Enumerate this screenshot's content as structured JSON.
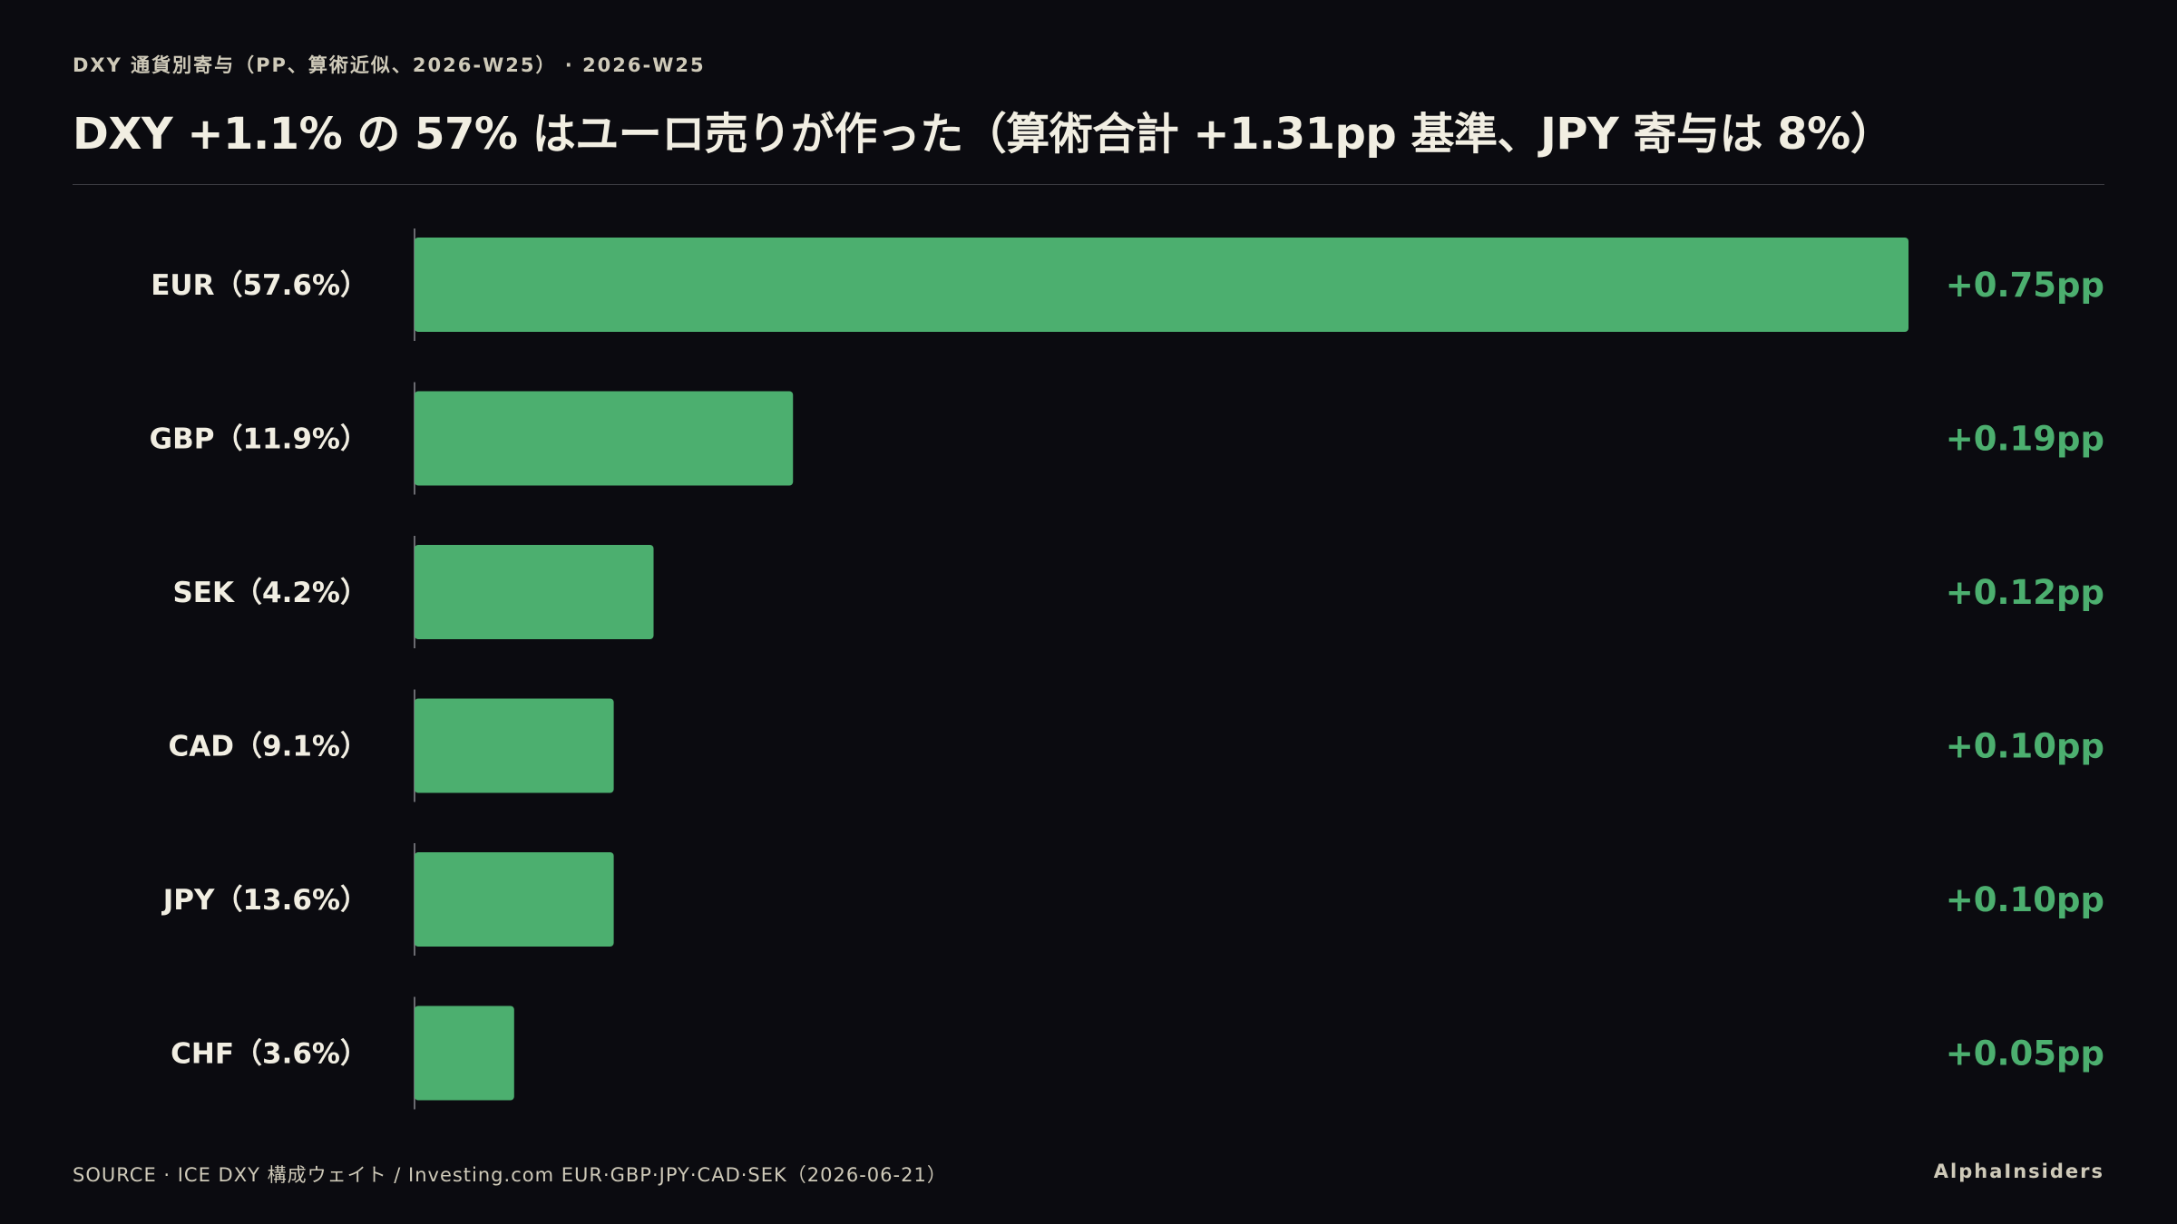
{
  "header": {
    "kicker": "DXY 通貨別寄与（PP、算術近似、2026-W25） · 2026-W25",
    "title": "DXY +1.1% の 57% はユーロ売りが作った（算術合計 +1.31pp 基準、JPY 寄与は 8%）"
  },
  "footer": {
    "source": "SOURCE · ICE DXY 構成ウェイト / Investing.com EUR·GBP·JPY·CAD·SEK（2026-06-21）",
    "brand": "AlphaInsiders"
  },
  "colors": {
    "background": "#0b0b10",
    "bar": "#4caf6f",
    "value_label": "#4caf6f",
    "category_label": "#f1eee2",
    "axis": "#8a8a90"
  },
  "chart_data": {
    "type": "bar",
    "orientation": "horizontal",
    "categories": [
      "EUR（57.6%）",
      "GBP（11.9%）",
      "SEK（4.2%）",
      "CAD（9.1%）",
      "JPY（13.6%）",
      "CHF（3.6%）"
    ],
    "values": [
      0.75,
      0.19,
      0.12,
      0.1,
      0.1,
      0.05
    ],
    "value_labels": [
      "+0.75pp",
      "+0.19pp",
      "+0.12pp",
      "+0.10pp",
      "+0.10pp",
      "+0.05pp"
    ],
    "xlim": [
      0,
      0.75
    ],
    "grid": false,
    "legend": "none"
  }
}
